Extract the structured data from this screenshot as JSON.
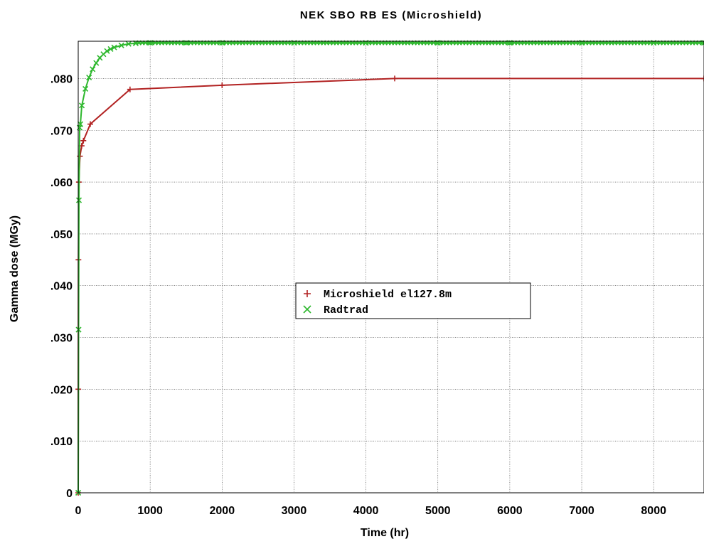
{
  "chart_data": {
    "type": "line",
    "title": "NEK SBO RB ES (Microshield)",
    "xlabel": "Time (hr)",
    "ylabel": "Gamma dose (MGy)",
    "xlim": [
      0,
      8700
    ],
    "ylim": [
      0,
      0.0872
    ],
    "x_ticks": [
      0,
      1000,
      2000,
      3000,
      4000,
      5000,
      6000,
      7000,
      8000
    ],
    "x_tick_labels": [
      "0",
      "1000",
      "2000",
      "3000",
      "4000",
      "5000",
      "6000",
      "7000",
      "8000"
    ],
    "y_ticks": [
      0,
      0.01,
      0.02,
      0.03,
      0.04,
      0.05,
      0.06,
      0.07,
      0.08
    ],
    "y_tick_labels": [
      "0",
      ".010",
      ".020",
      ".030",
      ".040",
      ".050",
      ".060",
      ".070",
      ".080"
    ],
    "grid": true,
    "legend_position": "center",
    "series": [
      {
        "name": "Microshield el127.8m",
        "color": "#b22222",
        "marker": "+",
        "x": [
          0,
          1,
          3,
          8,
          24,
          48,
          72,
          168,
          720,
          2000,
          4400,
          8700
        ],
        "y": [
          0,
          0.02,
          0.045,
          0.06,
          0.065,
          0.067,
          0.068,
          0.0712,
          0.0779,
          0.0787,
          0.08,
          0.08
        ]
      },
      {
        "name": "Radtrad",
        "color": "#2eb82e",
        "marker": "x",
        "x": [
          0,
          5,
          10,
          20,
          30,
          50,
          100,
          150,
          200,
          250,
          300,
          350,
          400,
          450,
          500,
          600,
          700,
          800,
          1000,
          1500,
          2000,
          3000,
          4000,
          5000,
          6000,
          7000,
          8000,
          8700
        ],
        "y": [
          0,
          0.0315,
          0.0565,
          0.0705,
          0.0712,
          0.0748,
          0.078,
          0.0802,
          0.0818,
          0.083,
          0.084,
          0.0847,
          0.0853,
          0.0857,
          0.086,
          0.0864,
          0.0867,
          0.0868,
          0.0869,
          0.0869,
          0.0869,
          0.0869,
          0.0869,
          0.0869,
          0.0869,
          0.0869,
          0.0869,
          0.0869
        ]
      }
    ]
  }
}
